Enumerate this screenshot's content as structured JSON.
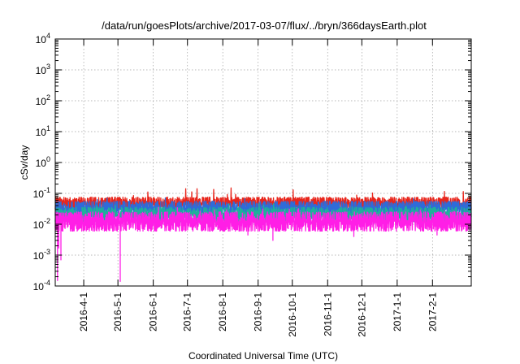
{
  "chart_data": {
    "type": "line",
    "title": "/data/run/goesPlots/archive/2017-03-07/flux/../bryn/366daysEarth.plot",
    "xlabel": "Coordinated Universal Time (UTC)",
    "ylabel": "cSv/day",
    "xlim": [
      "2016-03-07",
      "2017-03-07"
    ],
    "yscale": "log",
    "ylim": [
      0.0001,
      10000
    ],
    "grid": true,
    "legend": "none",
    "ytick_exponents": [
      -4,
      -3,
      -2,
      -1,
      0,
      1,
      2,
      3,
      4
    ],
    "ytick_base": "10",
    "xticks": [
      "2016-04-01",
      "2016-05-01",
      "2016-06-01",
      "2016-07-01",
      "2016-08-01",
      "2016-09-01",
      "2016-10-01",
      "2016-11-01",
      "2016-12-01",
      "2017-01-01",
      "2017-02-01"
    ],
    "xtick_labels": [
      "2016-4-1",
      "2016-5-1",
      "2016-6-1",
      "2016-7-1",
      "2016-8-1",
      "2016-9-1",
      "2016-10-1",
      "2016-11-1",
      "2016-12-1",
      "2017-1-1",
      "2017-2-1"
    ],
    "series": [
      {
        "color": "#e8261c",
        "band_low": 0.03,
        "band_high": 0.075,
        "spike_max": 0.15
      },
      {
        "color": "#2f6bd8",
        "band_low": 0.018,
        "band_high": 0.055,
        "spike_max": 0.08
      },
      {
        "color": "#1fb09a",
        "band_low": 0.012,
        "band_high": 0.035,
        "spike_max": 0.05
      },
      {
        "color": "#ff1ee6",
        "band_low": 0.006,
        "band_high": 0.025,
        "spike_max": 0.04,
        "dips": [
          {
            "date": "2016-03-09",
            "value": 0.00015
          },
          {
            "date": "2016-03-10",
            "value": 0.0017
          },
          {
            "date": "2016-03-12",
            "value": 0.0007
          },
          {
            "date": "2016-05-03",
            "value": 0.00014
          },
          {
            "date": "2016-08-23",
            "value": 0.0045
          },
          {
            "date": "2016-09-14",
            "value": 0.003
          },
          {
            "date": "2016-11-24",
            "value": 0.004
          },
          {
            "date": "2017-02-05",
            "value": 0.0045
          }
        ]
      }
    ]
  }
}
